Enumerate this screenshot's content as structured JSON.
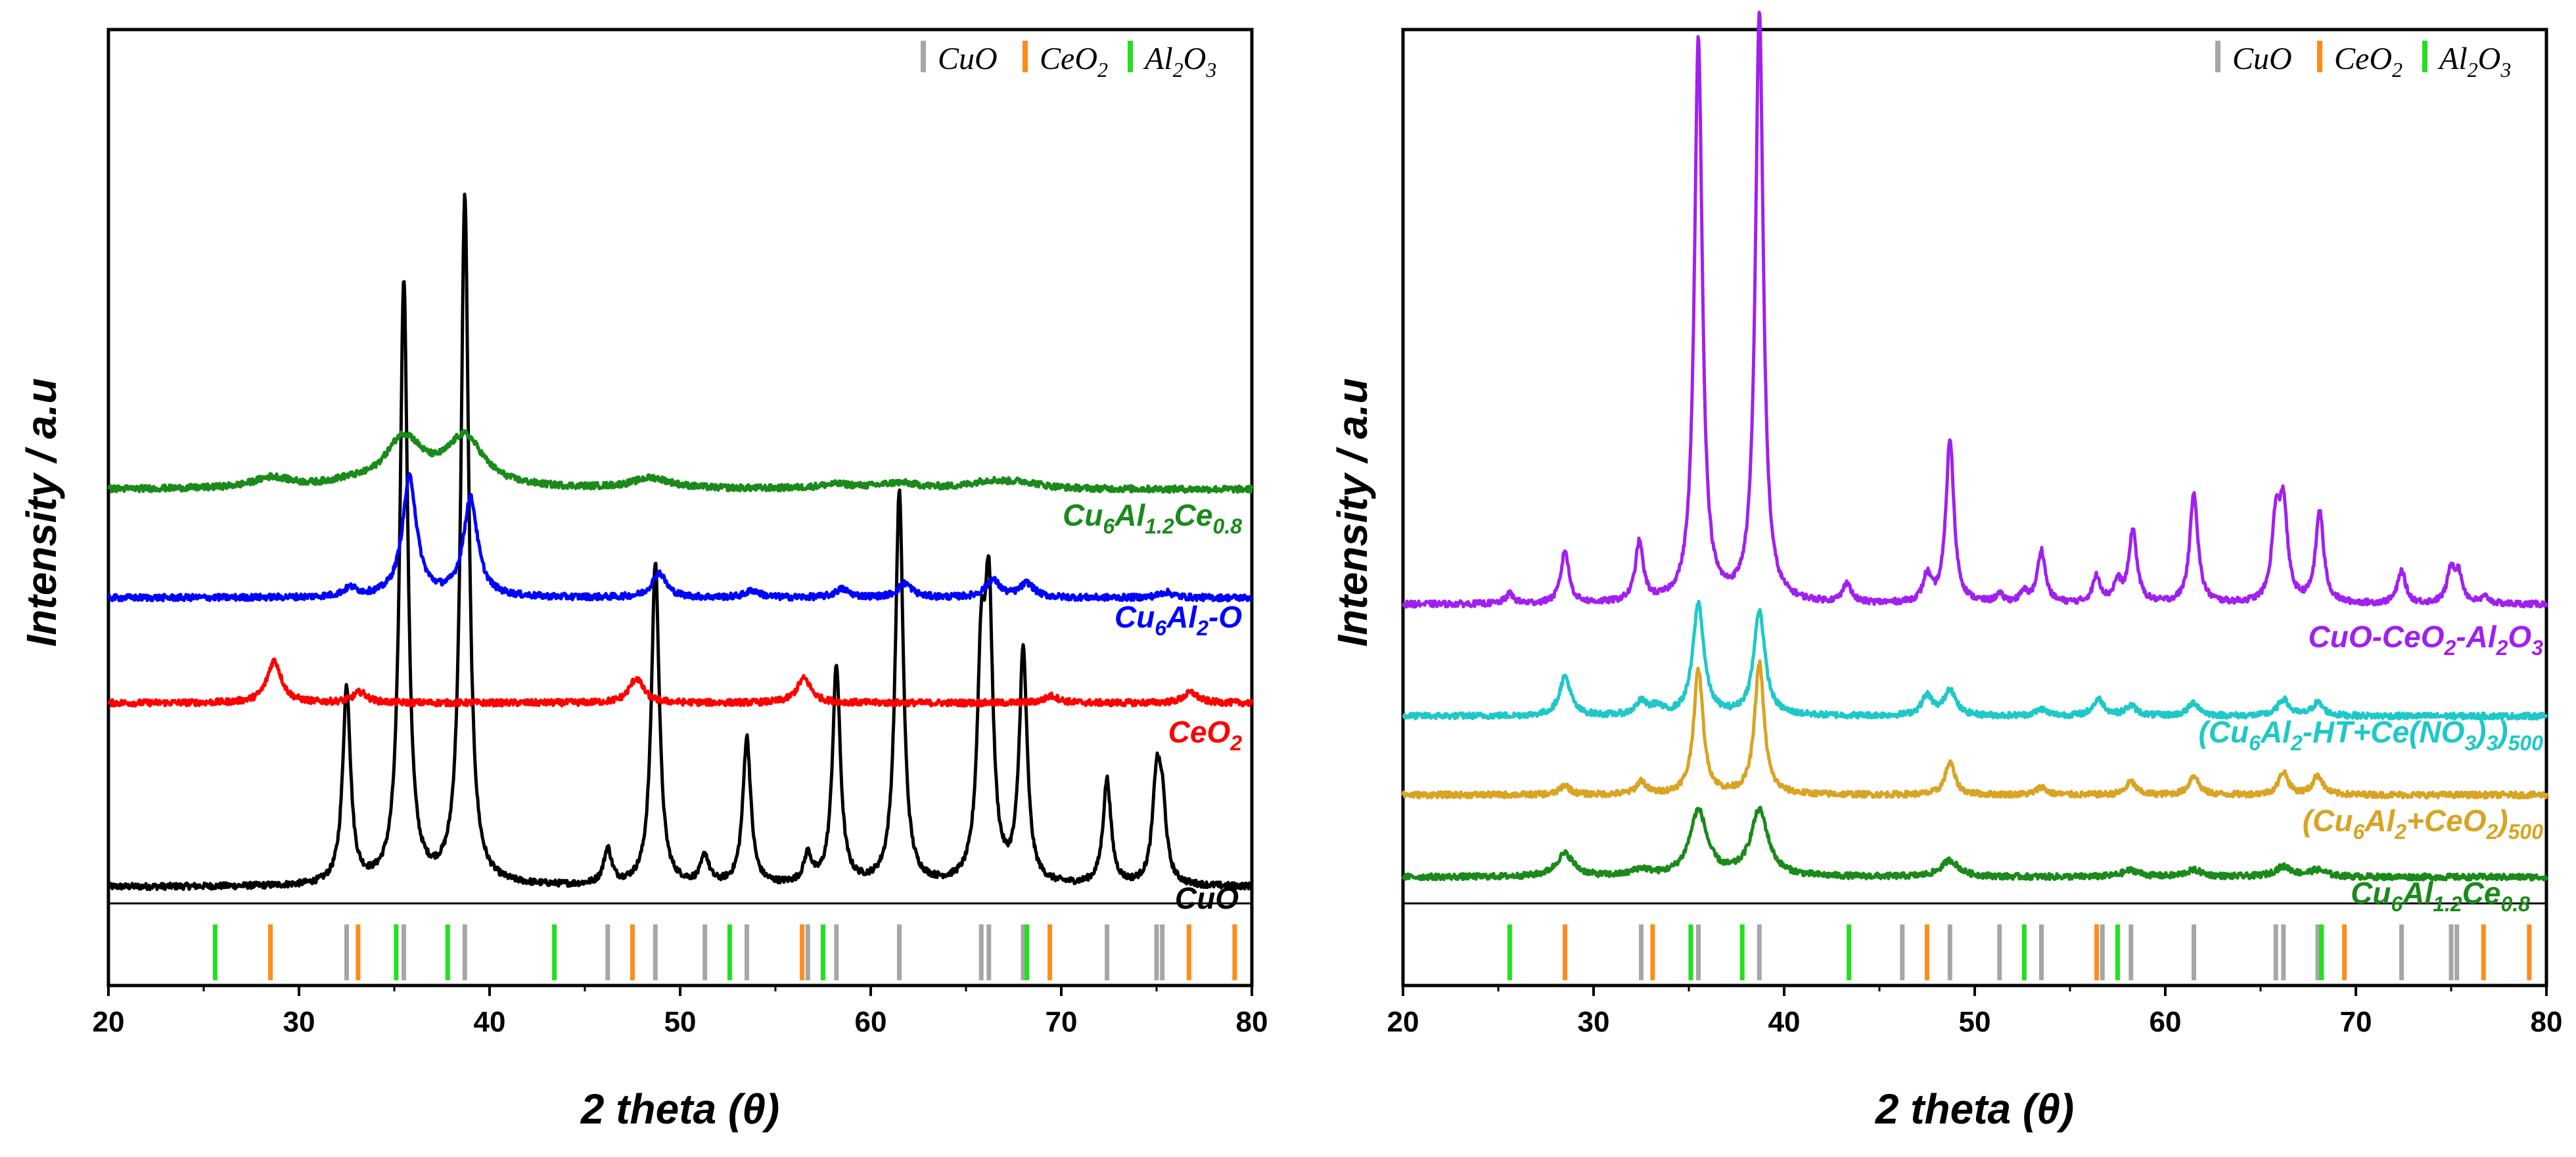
{
  "chart_data": [
    {
      "type": "line",
      "panel": "left",
      "xlabel": "2 theta (θ)",
      "ylabel": "Intensity / a.u",
      "xlim": [
        20,
        80
      ],
      "xticks": [
        20,
        30,
        40,
        50,
        60,
        70,
        80
      ],
      "legend": {
        "placement": "top-right",
        "entries": [
          {
            "label": "CuO",
            "color": "#a6a6a6"
          },
          {
            "label": "CeO2",
            "color": "#ff8c1a"
          },
          {
            "label": "Al2O3",
            "color": "#22e01f"
          }
        ]
      },
      "series": [
        {
          "name": "CuO",
          "color": "#000000",
          "baseline": 0,
          "width": 0.25,
          "peaks": [
            [
              32.5,
              28
            ],
            [
              35.5,
              86
            ],
            [
              38.7,
              98
            ],
            [
              46.2,
              5
            ],
            [
              48.7,
              46
            ],
            [
              51.3,
              4
            ],
            [
              53.5,
              21
            ],
            [
              56.7,
              4
            ],
            [
              58.2,
              31
            ],
            [
              61.5,
              56
            ],
            [
              65.8,
              29
            ],
            [
              66.2,
              38
            ],
            [
              68.0,
              33
            ],
            [
              72.4,
              15
            ],
            [
              75.0,
              14
            ],
            [
              75.3,
              10
            ]
          ]
        },
        {
          "name": "CeO2",
          "color": "#ff0000",
          "baseline": 31,
          "width": 0.45,
          "peaks": [
            [
              28.7,
              6
            ],
            [
              33.2,
              1.5
            ],
            [
              47.7,
              3.5
            ],
            [
              56.5,
              3.5
            ],
            [
              69.5,
              1
            ],
            [
              76.8,
              1.5
            ]
          ]
        },
        {
          "name": "Cu6Al2-O",
          "color": "#0000ff",
          "baseline": 46,
          "width": 0.45,
          "peaks": [
            [
              32.7,
              1.2
            ],
            [
              35.8,
              17
            ],
            [
              39.0,
              14
            ],
            [
              48.9,
              3.5
            ],
            [
              53.8,
              1
            ],
            [
              58.5,
              1.2
            ],
            [
              61.8,
              2
            ],
            [
              66.4,
              2.5
            ],
            [
              68.2,
              2
            ],
            [
              75.5,
              0.8
            ]
          ]
        },
        {
          "name": "Cu6Al1.2Ce0.8",
          "color": "#1a8a1a",
          "baseline": 62,
          "width": 1.2,
          "peaks": [
            [
              28.6,
              1.5
            ],
            [
              32.5,
              0.6
            ],
            [
              35.5,
              7
            ],
            [
              38.7,
              7
            ],
            [
              48.5,
              1.5
            ],
            [
              58.2,
              0.6
            ],
            [
              61.5,
              0.8
            ],
            [
              66.2,
              1
            ],
            [
              68.0,
              0.8
            ]
          ]
        }
      ],
      "labels": [
        {
          "series": "Cu6Al1.2Ce0.8",
          "text": "Cu6Al1.2Ce0.8"
        },
        {
          "series": "Cu6Al2-O",
          "text": "Cu6Al2-O"
        },
        {
          "series": "CeO2",
          "text": "CeO2"
        },
        {
          "series": "CuO",
          "text": "CuO"
        }
      ],
      "reference_lines": {
        "CuO": [
          32.5,
          35.5,
          38.7,
          46.2,
          48.7,
          51.3,
          53.5,
          56.7,
          58.2,
          61.5,
          65.8,
          66.2,
          68.0,
          72.4,
          75.0,
          75.3
        ],
        "CeO2": [
          28.5,
          33.1,
          47.5,
          56.4,
          69.4,
          76.7,
          79.1
        ],
        "Al2O3": [
          25.6,
          35.1,
          37.8,
          43.4,
          52.6,
          57.5,
          68.2
        ]
      }
    },
    {
      "type": "line",
      "panel": "right",
      "xlabel": "2 theta (θ)",
      "ylabel": "Intensity / a.u",
      "xlim": [
        20,
        80
      ],
      "xticks": [
        20,
        30,
        40,
        50,
        60,
        70,
        80
      ],
      "legend": {
        "placement": "top-right",
        "entries": [
          {
            "label": "CuO",
            "color": "#a6a6a6"
          },
          {
            "label": "CeO2",
            "color": "#ff8c1a"
          },
          {
            "label": "Al2O3",
            "color": "#22e01f"
          }
        ]
      },
      "series": [
        {
          "name": "Cu6Al1.2Ce0.8",
          "color": "#1a8a1a",
          "baseline": 0,
          "width": 0.55,
          "peaks": [
            [
              28.5,
              3.5
            ],
            [
              32.5,
              1
            ],
            [
              35.5,
              10
            ],
            [
              38.7,
              10
            ],
            [
              48.7,
              2.5
            ],
            [
              58.2,
              1
            ],
            [
              61.5,
              1
            ],
            [
              66.2,
              1.5
            ],
            [
              68.0,
              1
            ]
          ]
        },
        {
          "name": "(Cu6Al2+CeO2)500",
          "color": "#d9a323",
          "baseline": 12,
          "width": 0.3,
          "peaks": [
            [
              28.5,
              1.5
            ],
            [
              32.5,
              2
            ],
            [
              35.5,
              19
            ],
            [
              38.7,
              20
            ],
            [
              48.7,
              5
            ],
            [
              53.5,
              1.2
            ],
            [
              58.2,
              2
            ],
            [
              61.5,
              3
            ],
            [
              66.2,
              3.5
            ],
            [
              68.0,
              3
            ]
          ]
        },
        {
          "name": "(Cu6Al2-HT+Ce(NO3)3)500",
          "color": "#1ec8c8",
          "baseline": 24,
          "width": 0.35,
          "peaks": [
            [
              28.5,
              6
            ],
            [
              32.5,
              2
            ],
            [
              33.3,
              1.2
            ],
            [
              35.5,
              17
            ],
            [
              38.7,
              16
            ],
            [
              47.5,
              3
            ],
            [
              48.7,
              4
            ],
            [
              53.5,
              1
            ],
            [
              56.5,
              2.5
            ],
            [
              58.2,
              1.5
            ],
            [
              61.5,
              2
            ],
            [
              66.2,
              2.5
            ],
            [
              68.0,
              2
            ]
          ]
        },
        {
          "name": "CuO-CeO2-Al2O3",
          "color": "#a020f0",
          "baseline": 40,
          "width": 0.25,
          "peaks": [
            [
              25.6,
              1.5
            ],
            [
              28.5,
              8
            ],
            [
              32.4,
              9
            ],
            [
              35.5,
              86
            ],
            [
              38.7,
              90
            ],
            [
              43.3,
              3
            ],
            [
              47.5,
              4
            ],
            [
              48.7,
              25
            ],
            [
              51.3,
              1.2
            ],
            [
              52.6,
              1.5
            ],
            [
              53.5,
              8
            ],
            [
              56.4,
              4
            ],
            [
              57.5,
              3
            ],
            [
              58.3,
              11
            ],
            [
              61.5,
              17
            ],
            [
              65.8,
              12
            ],
            [
              66.2,
              14
            ],
            [
              68.1,
              14
            ],
            [
              72.4,
              5
            ],
            [
              75.0,
              5
            ],
            [
              75.4,
              4
            ],
            [
              76.8,
              1
            ]
          ]
        }
      ],
      "labels": [
        {
          "series": "CuO-CeO2-Al2O3",
          "text": "CuO-CeO2-Al2O3"
        },
        {
          "series": "(Cu6Al2-HT+Ce(NO3)3)500",
          "text": "(Cu6Al2-HT+Ce(NO3)3)500"
        },
        {
          "series": "(Cu6Al2+CeO2)500",
          "text": "(Cu6Al2+CeO2)500"
        },
        {
          "series": "Cu6Al1.2Ce0.8",
          "text": "Cu6Al1.2Ce0.8"
        }
      ],
      "reference_lines": {
        "CuO": [
          32.5,
          35.5,
          38.7,
          46.2,
          48.7,
          51.3,
          53.5,
          56.7,
          58.2,
          61.5,
          65.8,
          66.2,
          68.0,
          72.4,
          75.0,
          75.3
        ],
        "CeO2": [
          28.5,
          33.1,
          47.5,
          56.4,
          69.4,
          76.7,
          79.1
        ],
        "Al2O3": [
          25.6,
          35.1,
          37.8,
          43.4,
          52.6,
          57.5,
          68.2
        ]
      }
    }
  ]
}
